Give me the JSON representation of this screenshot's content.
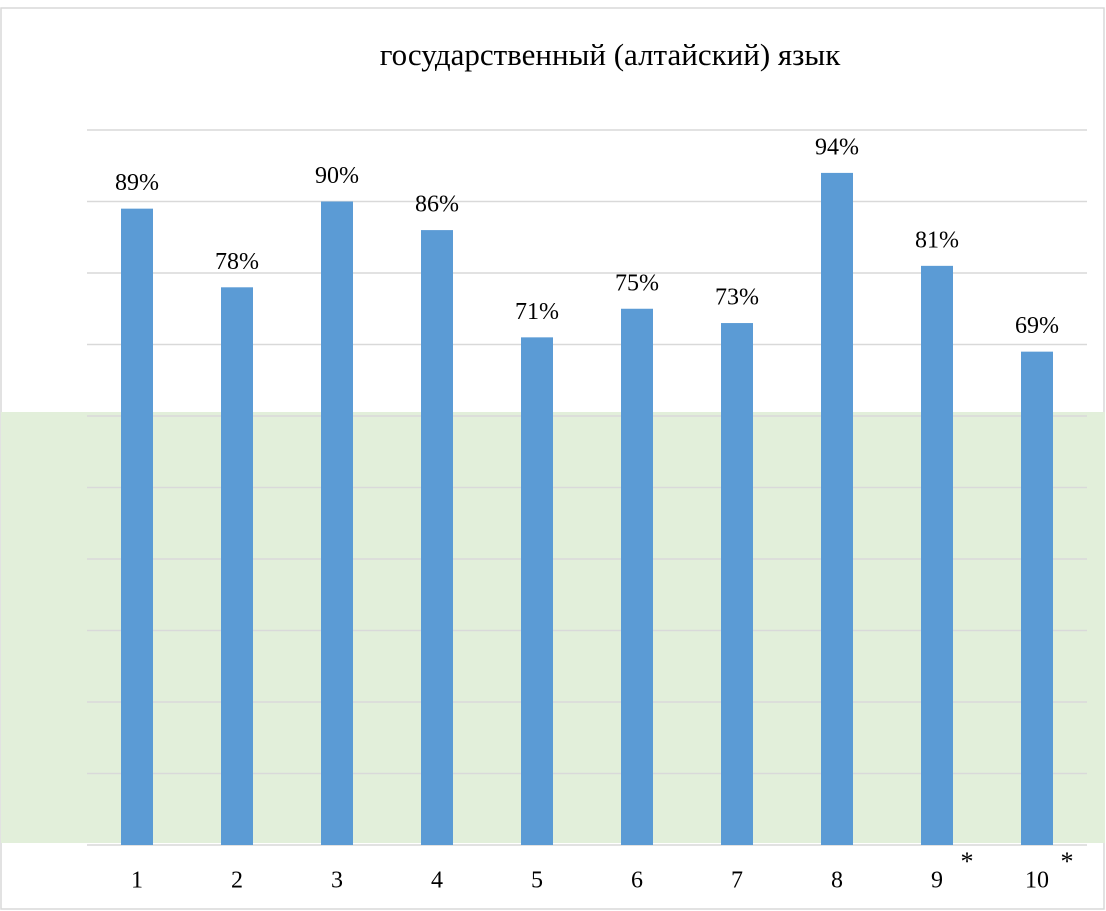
{
  "chart_data": {
    "type": "bar",
    "title": "государственный (алтайский) язык",
    "categories": [
      "1",
      "2",
      "3",
      "4",
      "5",
      "6",
      "7",
      "8",
      "9",
      "10"
    ],
    "values": [
      89,
      78,
      90,
      86,
      71,
      75,
      73,
      94,
      81,
      69
    ],
    "value_labels": [
      "89%",
      "78%",
      "90%",
      "86%",
      "71%",
      "75%",
      "73%",
      "94%",
      "81%",
      "69%"
    ],
    "color": "#5b9bd5",
    "ylim": [
      0,
      100
    ],
    "yticks": [
      0,
      10,
      20,
      30,
      40,
      50,
      60,
      70,
      80,
      90,
      100
    ],
    "grid": true,
    "shaded_range": {
      "ylim": [
        0,
        60
      ],
      "color": "#e2efda"
    },
    "annotations": [
      {
        "category": 8,
        "text": "*"
      },
      {
        "category": 9,
        "text": "*"
      }
    ]
  }
}
